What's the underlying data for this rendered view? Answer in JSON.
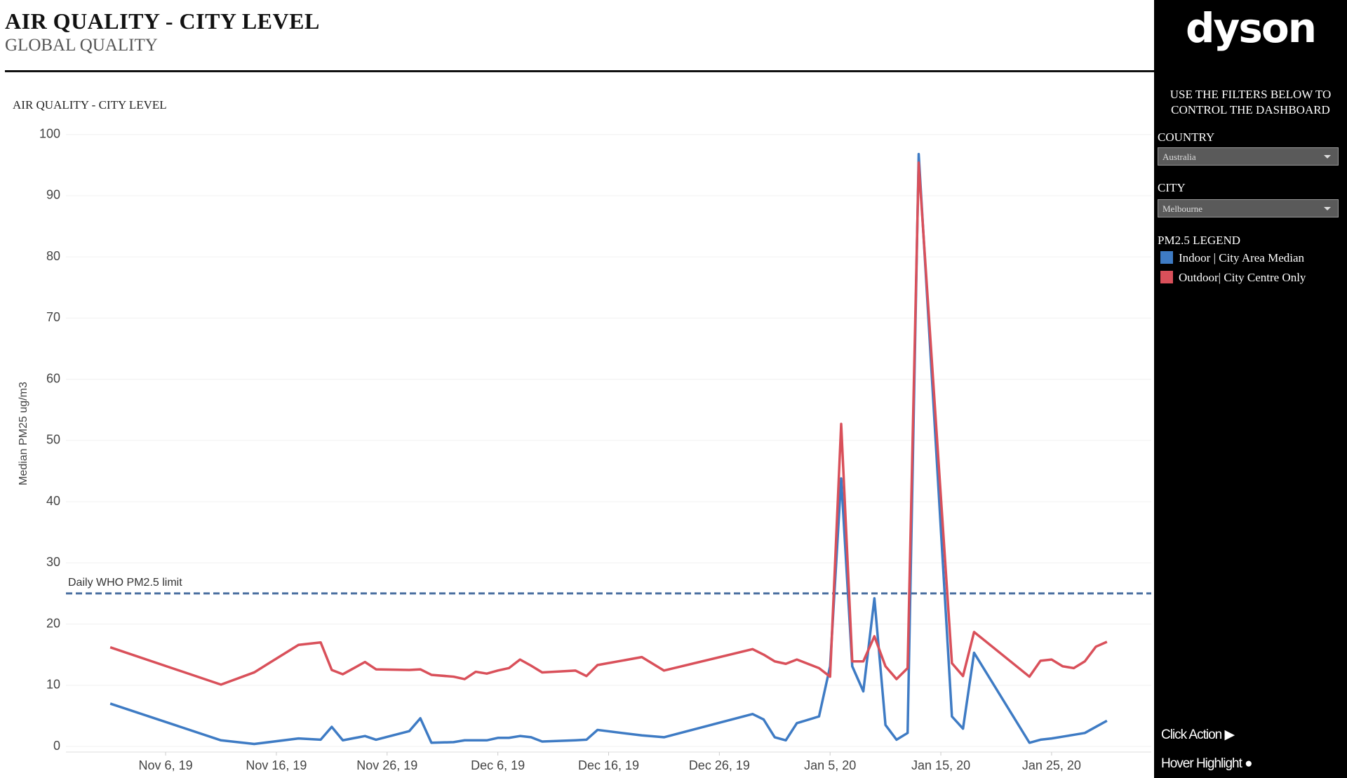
{
  "header": {
    "title": "AIR QUALITY - CITY LEVEL",
    "subtitle": "GLOBAL QUALITY"
  },
  "sidebar": {
    "logo": "dyson",
    "instructions": "USE THE FILTERS BELOW TO CONTROL THE DASHBOARD",
    "country_label": "COUNTRY",
    "country_value": "Australia",
    "city_label": "CITY",
    "city_value": "Melbourne",
    "legend_title": "PM2.5 LEGEND",
    "click_action": "Click Action ▶",
    "hover_highlight": "Hover Highlight ●"
  },
  "chart_data": {
    "type": "line",
    "title": "AIR QUALITY - CITY LEVEL",
    "y_label": "Median PM25 ug/m3",
    "grid": true,
    "x": [
      "2019-11-01",
      "2019-11-11",
      "2019-11-14",
      "2019-11-18",
      "2019-11-20",
      "2019-11-21",
      "2019-11-22",
      "2019-11-24",
      "2019-11-25",
      "2019-11-28",
      "2019-11-29",
      "2019-11-30",
      "2019-12-02",
      "2019-12-03",
      "2019-12-04",
      "2019-12-05",
      "2019-12-06",
      "2019-12-07",
      "2019-12-08",
      "2019-12-09",
      "2019-12-10",
      "2019-12-13",
      "2019-12-14",
      "2019-12-15",
      "2019-12-19",
      "2019-12-21",
      "2019-12-29",
      "2019-12-30",
      "2019-12-31",
      "2020-01-01",
      "2020-01-02",
      "2020-01-04",
      "2020-01-05",
      "2020-01-06",
      "2020-01-07",
      "2020-01-08",
      "2020-01-09",
      "2020-01-10",
      "2020-01-11",
      "2020-01-12",
      "2020-01-13",
      "2020-01-16",
      "2020-01-17",
      "2020-01-18",
      "2020-01-23",
      "2020-01-24",
      "2020-01-25",
      "2020-01-26",
      "2020-01-27",
      "2020-01-28",
      "2020-01-29",
      "2020-01-30"
    ],
    "series": [
      {
        "name": "Indoor | City Area Median",
        "color": "#3e7bc4",
        "values": [
          7.0,
          1.0,
          0.4,
          1.3,
          1.1,
          3.2,
          1.0,
          1.7,
          1.1,
          2.5,
          4.6,
          0.6,
          0.7,
          1.0,
          1.0,
          1.0,
          1.4,
          1.4,
          1.7,
          1.5,
          0.8,
          1.0,
          1.1,
          2.7,
          1.8,
          1.5,
          5.3,
          4.4,
          1.5,
          1.0,
          3.8,
          4.9,
          13.1,
          43.8,
          13.1,
          9.0,
          24.2,
          3.5,
          1.1,
          2.2,
          96.8,
          4.9,
          2.9,
          15.3,
          0.6,
          1.1,
          1.3,
          1.6,
          1.9,
          2.2,
          3.2,
          4.2
        ]
      },
      {
        "name": "Outdoor| City Centre Only",
        "color": "#d9505a",
        "values": [
          16.2,
          10.1,
          12.1,
          16.6,
          17.0,
          12.5,
          11.8,
          13.8,
          12.6,
          12.5,
          12.6,
          11.7,
          11.4,
          11.0,
          12.2,
          11.9,
          12.4,
          12.8,
          14.2,
          13.2,
          12.1,
          12.4,
          11.5,
          13.3,
          14.6,
          12.4,
          15.9,
          15.0,
          13.9,
          13.5,
          14.2,
          12.8,
          11.4,
          52.7,
          13.9,
          13.9,
          18.0,
          13.1,
          11.0,
          12.8,
          95.4,
          13.6,
          11.5,
          18.7,
          11.4,
          14.0,
          14.2,
          13.1,
          12.8,
          13.9,
          16.3,
          17.1
        ]
      }
    ],
    "reference_line": {
      "value": 25,
      "label": "Daily WHO PM2.5 limit",
      "color": "#4a6fa0"
    },
    "xlim": [
      "2019-10-28",
      "2020-02-03"
    ],
    "xticks": [
      {
        "value": "2019-11-06",
        "label": "Nov 6, 19"
      },
      {
        "value": "2019-11-16",
        "label": "Nov 16, 19"
      },
      {
        "value": "2019-11-26",
        "label": "Nov 26, 19"
      },
      {
        "value": "2019-12-06",
        "label": "Dec 6, 19"
      },
      {
        "value": "2019-12-16",
        "label": "Dec 16, 19"
      },
      {
        "value": "2019-12-26",
        "label": "Dec 26, 19"
      },
      {
        "value": "2020-01-05",
        "label": "Jan 5, 20"
      },
      {
        "value": "2020-01-15",
        "label": "Jan 15, 20"
      },
      {
        "value": "2020-01-25",
        "label": "Jan 25, 20"
      }
    ],
    "ylim": [
      0,
      101
    ],
    "yticks": [
      0,
      10,
      20,
      30,
      40,
      50,
      60,
      70,
      80,
      90,
      100
    ]
  }
}
